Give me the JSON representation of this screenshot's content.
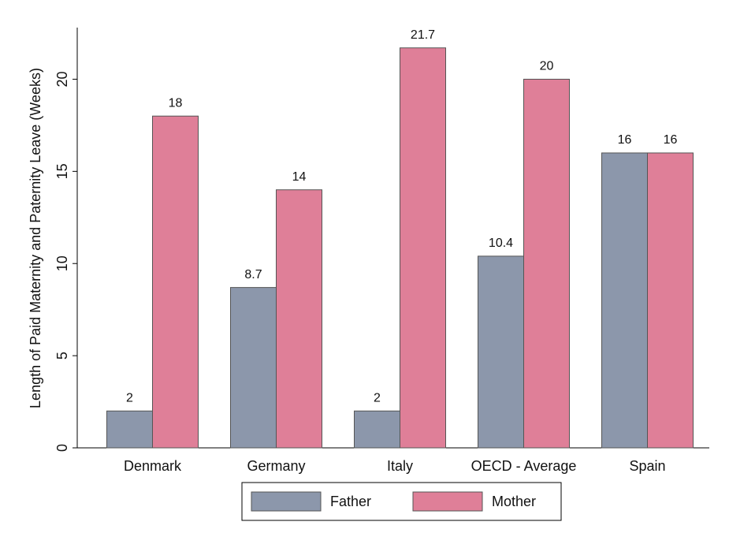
{
  "chart_data": {
    "type": "bar",
    "y_label": "Length of Paid Maternity and Paternity Leave (Weeks)",
    "categories": [
      "Denmark",
      "Germany",
      "Italy",
      "OECD - Average",
      "Spain"
    ],
    "series": [
      {
        "name": "Father",
        "color": "#8c97ab",
        "values": [
          2,
          8.7,
          2,
          10.4,
          16
        ]
      },
      {
        "name": "Mother",
        "color": "#df7f98",
        "values": [
          18,
          14,
          21.7,
          20,
          16
        ]
      }
    ],
    "ylim": [
      0,
      22.8
    ],
    "yticks": [
      0,
      5,
      10,
      15,
      20
    ],
    "grid": false,
    "legend": "bottom"
  }
}
